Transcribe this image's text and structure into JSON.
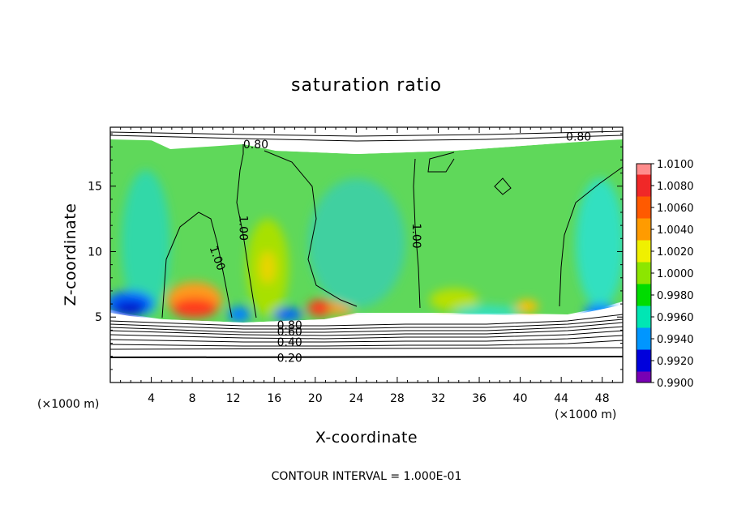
{
  "chart_data": {
    "type": "heatmap",
    "title": "saturation ratio",
    "xlabel": "X-coordinate",
    "ylabel": "Z-coordinate",
    "x_unit": "(×1000 m)",
    "y_unit": "(×1000 m)",
    "xlim": [
      0,
      50
    ],
    "ylim": [
      0,
      19.5
    ],
    "x_ticks": [
      4,
      8,
      12,
      16,
      20,
      24,
      28,
      32,
      36,
      40,
      44,
      48
    ],
    "y_ticks": [
      5,
      10,
      15
    ],
    "footer": "CONTOUR INTERVAL = 1.000E-01",
    "colorbar": {
      "labels": [
        "1.0100",
        "1.0080",
        "1.0060",
        "1.0040",
        "1.0020",
        "1.0000",
        "0.9980",
        "0.9960",
        "0.9940",
        "0.9920",
        "0.9900"
      ],
      "colors": [
        "#ff8c8c",
        "#f02828",
        "#ff5a00",
        "#ff9b00",
        "#f0f000",
        "#8ce600",
        "#00dc00",
        "#00e6b4",
        "#0096ff",
        "#0000dc",
        "#7800b4"
      ]
    },
    "contour_labels": [
      {
        "text": "0.80",
        "x": 14.2,
        "y": 18.2
      },
      {
        "text": "0.80",
        "x": 45.7,
        "y": 18.8
      },
      {
        "text": "1.00",
        "x": 12.6,
        "y": 11.8
      },
      {
        "text": "1.00",
        "x": 10.1,
        "y": 9.4
      },
      {
        "text": "1.00",
        "x": 29.5,
        "y": 11.2
      },
      {
        "text": "0.80",
        "x": 17.5,
        "y": 4.4
      },
      {
        "text": "0.60",
        "x": 17.5,
        "y": 3.9
      },
      {
        "text": "0.40",
        "x": 17.5,
        "y": 3.1
      },
      {
        "text": "0.20",
        "x": 17.5,
        "y": 1.9
      }
    ]
  }
}
